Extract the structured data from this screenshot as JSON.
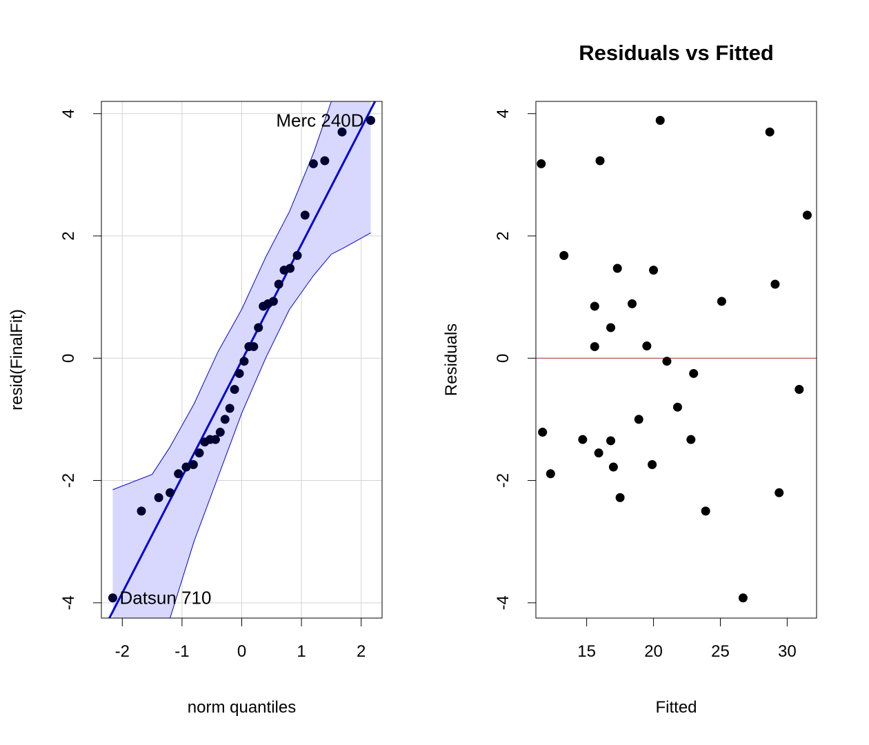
{
  "chart_data": [
    {
      "type": "scatter",
      "subtype": "qq-plot",
      "title": "",
      "xlabel": "norm quantiles",
      "ylabel": "resid(FinalFit)",
      "xlim": [
        -2.35,
        2.35
      ],
      "ylim": [
        -4.25,
        4.2
      ],
      "xticks": [
        -2,
        -1,
        0,
        1,
        2
      ],
      "yticks": [
        -4,
        -2,
        0,
        2,
        4
      ],
      "grid": true,
      "colors": {
        "points": "#000033",
        "line": "#0000dd",
        "band_fill": "#d8d8ff",
        "band_edge": "#0000dd",
        "grid": "#d3d3d3"
      },
      "points": [
        {
          "x": -2.16,
          "y": -3.92
        },
        {
          "x": -1.68,
          "y": -2.5
        },
        {
          "x": -1.39,
          "y": -2.28
        },
        {
          "x": -1.2,
          "y": -2.2
        },
        {
          "x": -1.06,
          "y": -1.89
        },
        {
          "x": -0.93,
          "y": -1.78
        },
        {
          "x": -0.81,
          "y": -1.74
        },
        {
          "x": -0.71,
          "y": -1.55
        },
        {
          "x": -0.62,
          "y": -1.37
        },
        {
          "x": -0.53,
          "y": -1.33
        },
        {
          "x": -0.44,
          "y": -1.33
        },
        {
          "x": -0.36,
          "y": -1.21
        },
        {
          "x": -0.28,
          "y": -1.0
        },
        {
          "x": -0.2,
          "y": -0.82
        },
        {
          "x": -0.12,
          "y": -0.51
        },
        {
          "x": -0.04,
          "y": -0.25
        },
        {
          "x": 0.04,
          "y": -0.05
        },
        {
          "x": 0.12,
          "y": 0.19
        },
        {
          "x": 0.2,
          "y": 0.19
        },
        {
          "x": 0.28,
          "y": 0.5
        },
        {
          "x": 0.36,
          "y": 0.85
        },
        {
          "x": 0.44,
          "y": 0.89
        },
        {
          "x": 0.53,
          "y": 0.93
        },
        {
          "x": 0.62,
          "y": 1.21
        },
        {
          "x": 0.71,
          "y": 1.44
        },
        {
          "x": 0.81,
          "y": 1.47
        },
        {
          "x": 0.93,
          "y": 1.68
        },
        {
          "x": 1.06,
          "y": 2.34
        },
        {
          "x": 1.2,
          "y": 3.18
        },
        {
          "x": 1.39,
          "y": 3.23
        },
        {
          "x": 1.68,
          "y": 3.7
        },
        {
          "x": 2.16,
          "y": 3.89
        }
      ],
      "reference_line": {
        "slope": 1.9,
        "intercept": -0.04
      },
      "envelope": {
        "x": [
          -2.16,
          -1.5,
          -1.2,
          -0.8,
          -0.4,
          0.0,
          0.4,
          0.8,
          1.2,
          1.5,
          1.7,
          2.16
        ],
        "upper": [
          -2.15,
          -1.9,
          -1.45,
          -0.75,
          0.1,
          0.8,
          1.65,
          2.4,
          3.35,
          4.2,
          4.2,
          4.2
        ],
        "lower": [
          -4.25,
          -4.25,
          -4.25,
          -3.0,
          -1.95,
          -0.9,
          0.0,
          0.8,
          1.35,
          1.7,
          1.8,
          2.05
        ]
      },
      "annotations": [
        {
          "text": "Merc 240D",
          "x": 2.16,
          "y": 3.89,
          "side": "left"
        },
        {
          "text": "Datsun 710",
          "x": -2.16,
          "y": -3.92,
          "side": "right"
        }
      ]
    },
    {
      "type": "scatter",
      "title": "Residuals vs Fitted",
      "xlabel": "Fitted",
      "ylabel": "Residuals",
      "xlim": [
        11.2,
        32.2
      ],
      "ylim": [
        -4.25,
        4.2
      ],
      "xticks": [
        15,
        20,
        25,
        30
      ],
      "yticks": [
        -4,
        -2,
        0,
        2,
        4
      ],
      "grid": false,
      "colors": {
        "points": "#000000",
        "hline": "#b22222"
      },
      "hline": 0,
      "points": [
        {
          "x": 11.6,
          "y": 3.18
        },
        {
          "x": 11.7,
          "y": -1.21
        },
        {
          "x": 12.3,
          "y": -1.89
        },
        {
          "x": 13.3,
          "y": 1.68
        },
        {
          "x": 14.7,
          "y": -1.33
        },
        {
          "x": 15.6,
          "y": 0.85
        },
        {
          "x": 15.6,
          "y": 0.19
        },
        {
          "x": 15.9,
          "y": -1.55
        },
        {
          "x": 16.0,
          "y": 3.23
        },
        {
          "x": 16.8,
          "y": 0.5
        },
        {
          "x": 16.8,
          "y": -1.35
        },
        {
          "x": 17.0,
          "y": -1.78
        },
        {
          "x": 17.3,
          "y": 1.47
        },
        {
          "x": 17.5,
          "y": -2.28
        },
        {
          "x": 18.4,
          "y": 0.89
        },
        {
          "x": 18.9,
          "y": -1.0
        },
        {
          "x": 19.5,
          "y": 0.2
        },
        {
          "x": 19.9,
          "y": -1.74
        },
        {
          "x": 20.0,
          "y": 1.44
        },
        {
          "x": 20.5,
          "y": 3.89
        },
        {
          "x": 21.0,
          "y": -0.05
        },
        {
          "x": 21.8,
          "y": -0.8
        },
        {
          "x": 22.8,
          "y": -1.33
        },
        {
          "x": 23.0,
          "y": -0.25
        },
        {
          "x": 23.9,
          "y": -2.5
        },
        {
          "x": 25.1,
          "y": 0.93
        },
        {
          "x": 26.7,
          "y": -3.92
        },
        {
          "x": 28.7,
          "y": 3.7
        },
        {
          "x": 29.1,
          "y": 1.21
        },
        {
          "x": 29.4,
          "y": -2.2
        },
        {
          "x": 30.9,
          "y": -0.51
        },
        {
          "x": 31.5,
          "y": 2.34
        }
      ]
    }
  ]
}
